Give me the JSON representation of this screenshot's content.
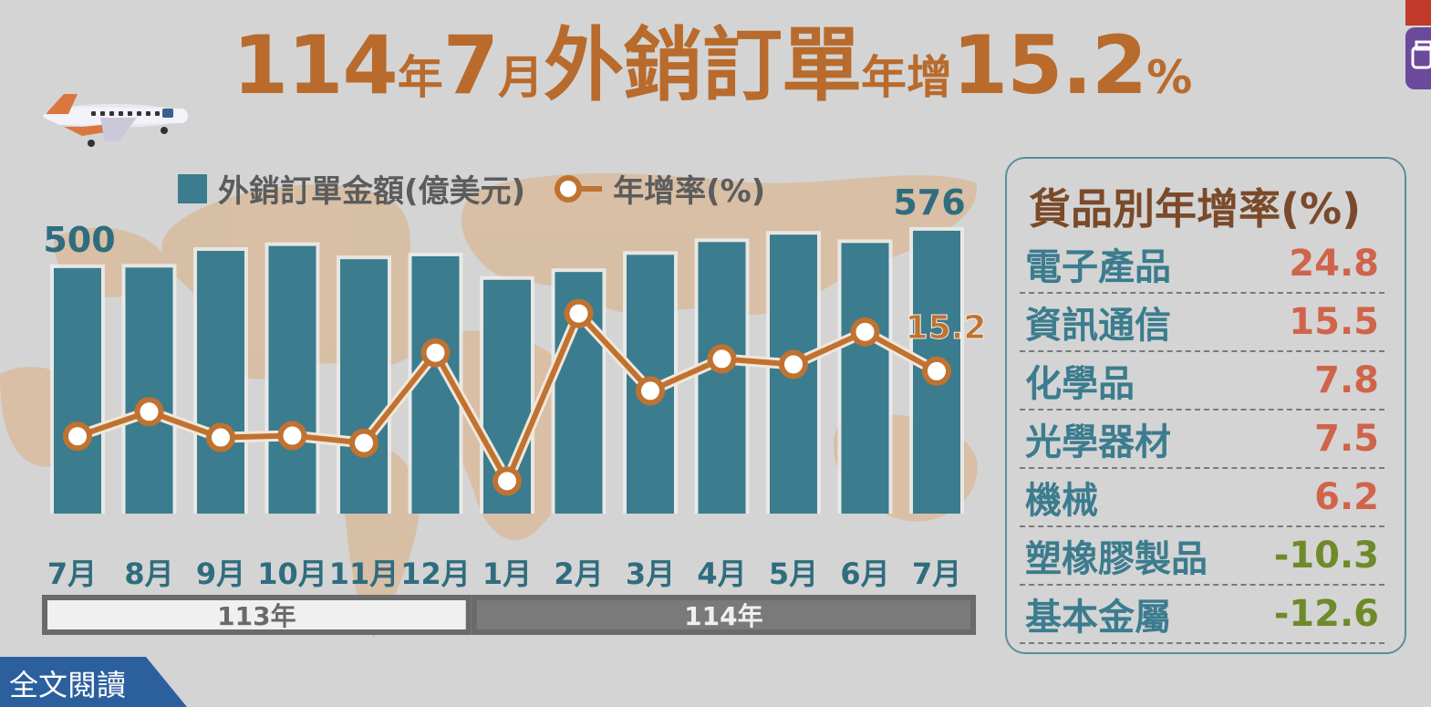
{
  "header": {
    "title_parts": [
      {
        "text": "114",
        "size": "big"
      },
      {
        "text": "年",
        "size": "small"
      },
      {
        "text": "7",
        "size": "big"
      },
      {
        "text": "月",
        "size": "small"
      },
      {
        "text": "外銷訂單",
        "size": "big"
      },
      {
        "text": "年增",
        "size": "small"
      },
      {
        "text": "15.2",
        "size": "big"
      },
      {
        "text": "%",
        "size": "small"
      }
    ]
  },
  "colors": {
    "bar": "#3b7c8e",
    "line": "#c07230",
    "title": "#b86b2c",
    "positive": "#d0644a",
    "negative": "#6e8a2a",
    "year_bar_113": "#f0f0f0",
    "year_bar_114": "#7a7a7a"
  },
  "chart_data": {
    "type": "bar",
    "legend": [
      {
        "label": "外銷訂單金額(億美元)",
        "kind": "bar"
      },
      {
        "label": "年增率(%)",
        "kind": "line"
      }
    ],
    "categories": [
      "7月",
      "8月",
      "9月",
      "10月",
      "11月",
      "12月",
      "1月",
      "2月",
      "3月",
      "4月",
      "5月",
      "6月",
      "7月"
    ],
    "series": [
      {
        "name": "外銷訂單金額(億美元)",
        "type": "bar",
        "values": [
          500,
          501,
          535,
          545,
          518,
          524,
          476,
          492,
          527,
          553,
          568,
          551,
          576
        ]
      },
      {
        "name": "年增率(%)",
        "type": "line",
        "values": [
          4.6,
          8.6,
          4.4,
          4.7,
          3.5,
          18.2,
          -2.7,
          24.6,
          12.0,
          17.2,
          16.3,
          21.6,
          15.2
        ]
      }
    ],
    "data_labels": [
      {
        "series": 0,
        "index": 0,
        "text": "500"
      },
      {
        "series": 0,
        "index": 12,
        "text": "576"
      },
      {
        "series": 1,
        "index": 12,
        "text": "15.2"
      }
    ],
    "year_groups": [
      {
        "label": "113年",
        "from": 0,
        "to": 5
      },
      {
        "label": "114年",
        "from": 6,
        "to": 12
      }
    ],
    "bar_ylim": [
      0,
      600
    ],
    "line_ylim": [
      -8,
      40
    ],
    "grid": false,
    "legend_position": "top-left"
  },
  "side_panel": {
    "title": "貨品別年增率(%)",
    "rows": [
      {
        "name": "電子產品",
        "value": "24.8",
        "sign": "positive"
      },
      {
        "name": "資訊通信",
        "value": "15.5",
        "sign": "positive"
      },
      {
        "name": "化學品",
        "value": "7.8",
        "sign": "positive"
      },
      {
        "name": "光學器材",
        "value": "7.5",
        "sign": "positive"
      },
      {
        "name": "機械",
        "value": "6.2",
        "sign": "positive"
      },
      {
        "name": "塑橡膠製品",
        "value": "-10.3",
        "sign": "negative"
      },
      {
        "name": "基本金屬",
        "value": "-12.6",
        "sign": "negative"
      }
    ]
  },
  "footer": {
    "read_more": "全文閱讀"
  },
  "icons": {
    "decoration": "airplane-icon",
    "side_tools": [
      "share-icon",
      "print-icon"
    ]
  }
}
